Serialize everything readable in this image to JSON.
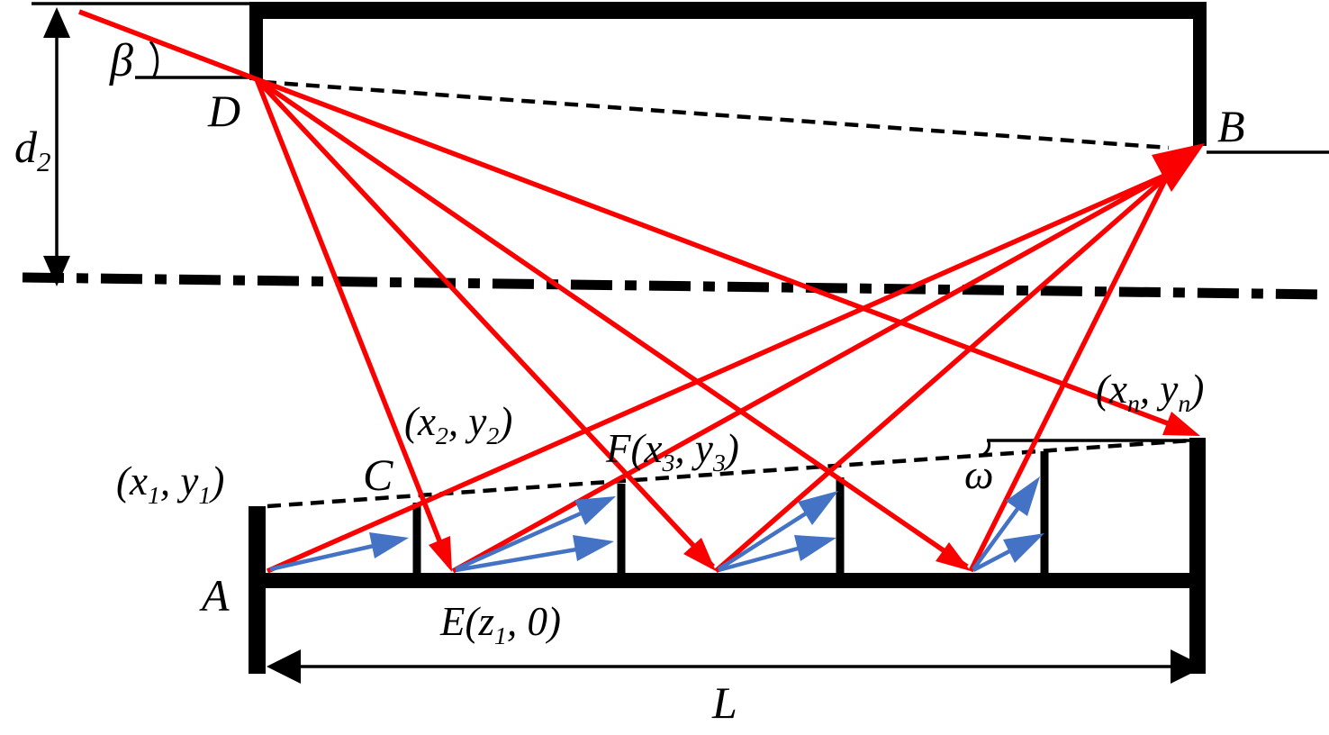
{
  "figure": {
    "labels": {
      "beta": "β",
      "omega": "ω",
      "D": "D",
      "B": "B",
      "A": "A",
      "C": "C",
      "L": "L",
      "d2": [
        {
          "t": "d"
        },
        {
          "t": "2",
          "sub": true
        }
      ],
      "x1y1": [
        {
          "t": "(x"
        },
        {
          "t": "1",
          "sub": true
        },
        {
          "t": ", y"
        },
        {
          "t": "1",
          "sub": true
        },
        {
          "t": ")"
        }
      ],
      "x2y2": [
        {
          "t": "(x"
        },
        {
          "t": "2",
          "sub": true
        },
        {
          "t": ", y"
        },
        {
          "t": "2",
          "sub": true
        },
        {
          "t": ")"
        }
      ],
      "Fx3y3": [
        {
          "t": "F(x"
        },
        {
          "t": "3",
          "sub": true
        },
        {
          "t": ", y"
        },
        {
          "t": "3",
          "sub": true
        },
        {
          "t": ")"
        }
      ],
      "xnyn": [
        {
          "t": "(x"
        },
        {
          "t": "n",
          "sub": true
        },
        {
          "t": ", y"
        },
        {
          "t": "n",
          "sub": true
        },
        {
          "t": ")"
        }
      ],
      "Ez1": [
        {
          "t": "E(z"
        },
        {
          "t": "1",
          "sub": true
        },
        {
          "t": ", 0)"
        }
      ]
    },
    "colors": {
      "ray": "#FB0000",
      "scatter": "#4472C4",
      "structure": "#000000",
      "background": "#FFFFFF"
    }
  }
}
